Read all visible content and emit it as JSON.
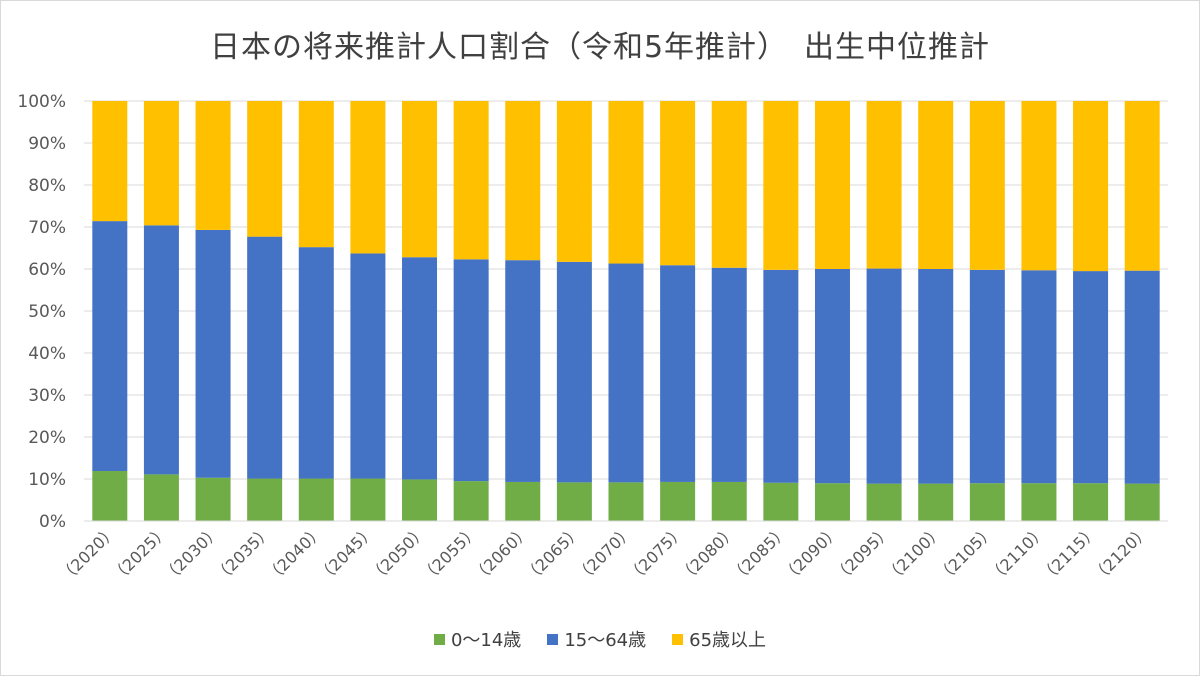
{
  "chart_data": {
    "type": "bar",
    "stacked": "percent",
    "title": "日本の将来推計人口割合（令和5年推計）　出生中位推計",
    "categories": [
      "（2020）",
      "（2025）",
      "（2030）",
      "（2035）",
      "（2040）",
      "（2045）",
      "（2050）",
      "（2055）",
      "（2060）",
      "（2065）",
      "（2070）",
      "（2075）",
      "（2080）",
      "（2085）",
      "（2090）",
      "（2095）",
      "（2100）",
      "（2105）",
      "（2110）",
      "（2115）",
      "（2120）"
    ],
    "series": [
      {
        "name": "0～14歳",
        "color": "#70ad47",
        "values": [
          11.9,
          11.1,
          10.3,
          10.1,
          10.1,
          10.1,
          9.9,
          9.5,
          9.3,
          9.2,
          9.2,
          9.3,
          9.3,
          9.1,
          9.0,
          8.9,
          8.9,
          9.0,
          9.0,
          9.0,
          8.9
        ]
      },
      {
        "name": "15～64歳",
        "color": "#4472c4",
        "values": [
          59.5,
          59.3,
          59.0,
          57.6,
          55.1,
          53.6,
          52.9,
          52.8,
          52.8,
          52.5,
          52.1,
          51.6,
          51.0,
          50.7,
          51.0,
          51.2,
          51.1,
          50.8,
          50.7,
          50.5,
          50.7
        ]
      },
      {
        "name": "65歳以上",
        "color": "#ffc000",
        "values": [
          28.6,
          29.6,
          30.7,
          32.3,
          34.8,
          36.3,
          37.2,
          37.7,
          37.9,
          38.3,
          38.7,
          39.1,
          39.7,
          40.2,
          40.0,
          39.9,
          40.0,
          40.2,
          40.3,
          40.5,
          40.4
        ]
      }
    ],
    "ylim": [
      0,
      100
    ],
    "yticks": [
      "0%",
      "10%",
      "20%",
      "30%",
      "40%",
      "50%",
      "60%",
      "70%",
      "80%",
      "90%",
      "100%"
    ],
    "grid": true,
    "legend_position": "bottom"
  }
}
